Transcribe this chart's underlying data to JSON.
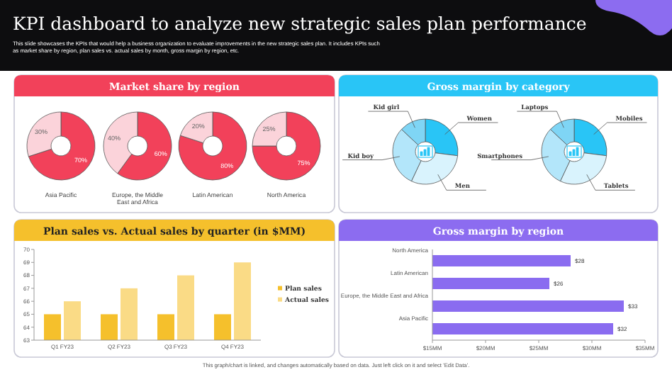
{
  "chart_data": [
    {
      "type": "other",
      "title": "KPI dashboard to analyze new strategic sales plan performance",
      "subtitle": "This slide showcases the KPIs that would help a business organization to evaluate improvements in the new strategic sales plan. It includes KPIs such as market share by region, plan sales vs. actual sales by month, gross margin by region, etc.",
      "annotations": [
        "This graph/chart is linked, and changes automatically based on data. Just left click on it and select 'Edit Data'."
      ]
    },
    {
      "type": "donut",
      "title": "Market share by region",
      "xlabel": "Asia Pacific",
      "categories": [
        null,
        null
      ],
      "values": [
        70,
        30
      ],
      "colors": [
        "#f2415a",
        "#fbd3da"
      ],
      "value_labels": [
        "70%",
        "30%"
      ]
    },
    {
      "type": "donut",
      "xlabel": "Europe, the Middle East and Africa",
      "categories": [
        null,
        null
      ],
      "values": [
        60,
        40
      ],
      "colors": [
        "#f2415a",
        "#fbd3da"
      ],
      "value_labels": [
        "60%",
        "40%"
      ]
    },
    {
      "type": "donut",
      "xlabel": "Latin American",
      "categories": [
        null,
        null
      ],
      "values": [
        80,
        20
      ],
      "colors": [
        "#f2415a",
        "#fbd3da"
      ],
      "value_labels": [
        "80%",
        "20%"
      ]
    },
    {
      "type": "donut",
      "xlabel": "North America",
      "categories": [
        null,
        null
      ],
      "values": [
        75,
        25
      ],
      "colors": [
        "#f2415a",
        "#fbd3da"
      ],
      "value_labels": [
        "75%",
        "25%"
      ]
    },
    {
      "type": "donut",
      "title": "Gross margin by category",
      "categories": [
        "Women",
        "Men",
        "Kid boy",
        "Kid girl"
      ],
      "values": [
        27,
        30,
        30,
        13
      ],
      "colors": [
        "#29c5f6",
        "#d9f3fd",
        "#b3e6fa",
        "#7fd5f5"
      ]
    },
    {
      "type": "donut",
      "categories": [
        "Mobiles",
        "Tablets",
        "Smartphones",
        "Laptops"
      ],
      "values": [
        27,
        30,
        30,
        13
      ],
      "colors": [
        "#29c5f6",
        "#d9f3fd",
        "#b3e6fa",
        "#7fd5f5"
      ]
    },
    {
      "type": "bar",
      "title": "Plan sales vs. Actual sales by quarter (in $MM)",
      "categories": [
        "Q1 FY23",
        "Q2 FY23",
        "Q3 FY23",
        "Q4 FY23"
      ],
      "ylim": [
        63,
        70
      ],
      "yticks": [
        63,
        64,
        65,
        66,
        67,
        68,
        69,
        70
      ],
      "legend": "right",
      "series": [
        {
          "name": "Plan sales",
          "color": "#f5c02c",
          "values": [
            65,
            65,
            65,
            65
          ]
        },
        {
          "name": "Actual sales",
          "color": "#fadb86",
          "values": [
            66,
            67,
            68,
            69
          ]
        }
      ]
    },
    {
      "type": "bar",
      "orientation": "horizontal",
      "title": "Gross margin by region",
      "categories": [
        "North America",
        "Latin American",
        "Europe, the Middle East and Africa",
        "Asia Pacific"
      ],
      "values": [
        28,
        26,
        33,
        32
      ],
      "value_labels": [
        "$28",
        "$26",
        "$33",
        "$32"
      ],
      "color": "#8a6cf0",
      "xlim": [
        15,
        35
      ],
      "xticks": [
        {
          "value": 15,
          "label": "$15MM"
        },
        {
          "value": 20,
          "label": "$20MM"
        },
        {
          "value": 25,
          "label": "$25MM"
        },
        {
          "value": 30,
          "label": "$30MM"
        },
        {
          "value": 35,
          "label": "$35MM"
        }
      ]
    }
  ]
}
